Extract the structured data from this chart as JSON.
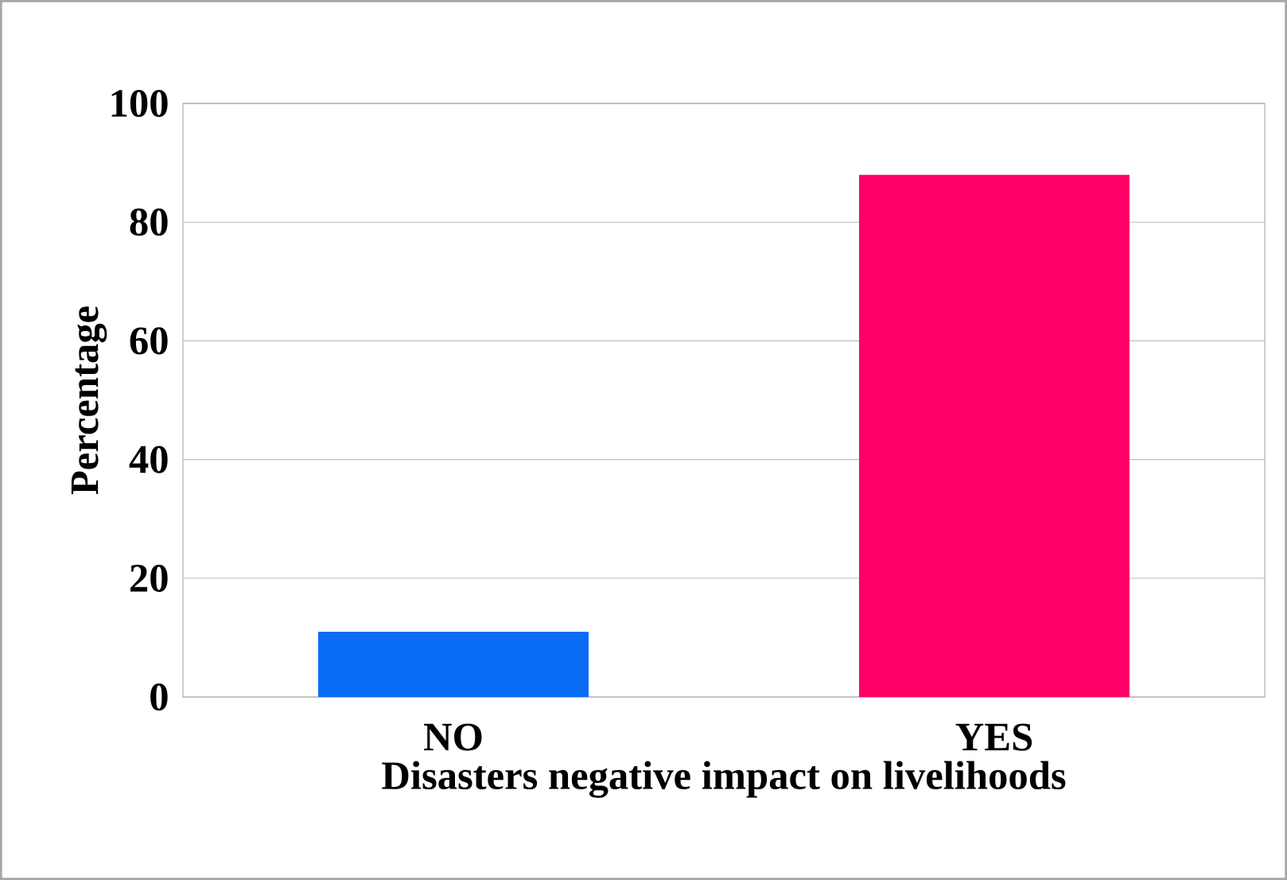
{
  "chart_data": {
    "type": "bar",
    "xlabel": "Disasters negative impact on livelihoods",
    "ylabel": "Percentage",
    "categories": [
      "NO",
      "YES"
    ],
    "values": [
      11,
      88
    ],
    "colors": [
      "#0a6cf5",
      "#ff0066"
    ],
    "ylim": [
      0,
      100
    ],
    "yticks": [
      0,
      20,
      40,
      60,
      80,
      100
    ],
    "grid": "y"
  }
}
